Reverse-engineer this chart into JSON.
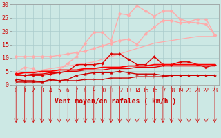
{
  "background_color": "#cce8e4",
  "grid_color": "#aacccc",
  "x_labels": [
    "0",
    "1",
    "2",
    "3",
    "4",
    "5",
    "6",
    "7",
    "8",
    "9",
    "10",
    "11",
    "12",
    "13",
    "14",
    "15",
    "16",
    "17",
    "18",
    "19",
    "20",
    "21",
    "22",
    "23"
  ],
  "xlabel": "Vent moyen/en rafales ( km/h )",
  "ylim": [
    0,
    30
  ],
  "yticks": [
    0,
    5,
    10,
    15,
    20,
    25,
    30
  ],
  "series": [
    {
      "color": "#ffaaaa",
      "linewidth": 0.9,
      "marker": null,
      "markersize": 0,
      "values": [
        4.0,
        4.5,
        5.0,
        5.5,
        6.0,
        6.5,
        7.0,
        7.5,
        8.0,
        8.5,
        9.5,
        10.5,
        11.5,
        12.5,
        13.5,
        14.5,
        15.5,
        16.0,
        16.5,
        17.0,
        17.5,
        18.0,
        18.0,
        18.0
      ]
    },
    {
      "color": "#ffaaaa",
      "linewidth": 1.0,
      "marker": "D",
      "markersize": 2.5,
      "values": [
        10.5,
        10.5,
        10.5,
        10.5,
        10.5,
        11.0,
        11.5,
        12.0,
        12.5,
        13.5,
        14.5,
        15.5,
        16.5,
        17.0,
        15.0,
        19.0,
        21.5,
        24.0,
        24.0,
        23.0,
        23.5,
        24.5,
        24.5,
        18.5
      ]
    },
    {
      "color": "#ffaaaa",
      "linewidth": 1.0,
      "marker": "D",
      "markersize": 2.5,
      "values": [
        4.5,
        6.5,
        6.0,
        4.0,
        4.0,
        5.5,
        8.0,
        10.5,
        15.5,
        19.5,
        19.5,
        16.5,
        26.5,
        26.0,
        29.5,
        27.5,
        25.5,
        27.5,
        27.5,
        24.5,
        23.5,
        23.0,
        22.5,
        18.5
      ]
    },
    {
      "color": "#dd0000",
      "linewidth": 1.0,
      "marker": "D",
      "markersize": 2.0,
      "values": [
        4.0,
        3.5,
        3.5,
        3.5,
        4.0,
        4.5,
        5.0,
        7.5,
        7.5,
        7.5,
        8.0,
        11.5,
        11.5,
        9.5,
        7.5,
        7.5,
        10.5,
        7.5,
        7.5,
        8.5,
        8.5,
        7.5,
        6.5,
        7.5
      ]
    },
    {
      "color": "#cc0000",
      "linewidth": 1.0,
      "marker": "^",
      "markersize": 2.5,
      "values": [
        2.0,
        1.5,
        1.5,
        1.0,
        2.0,
        1.5,
        2.0,
        3.5,
        4.0,
        4.5,
        4.5,
        4.5,
        5.0,
        4.5,
        4.0,
        4.0,
        4.0,
        3.5,
        3.5,
        3.5,
        3.5,
        3.5,
        3.5,
        3.5
      ]
    },
    {
      "color": "#ff0000",
      "linewidth": 1.3,
      "marker": null,
      "markersize": 0,
      "values": [
        4.0,
        4.5,
        4.5,
        5.0,
        5.0,
        5.5,
        5.5,
        5.5,
        6.0,
        6.0,
        6.5,
        6.5,
        6.5,
        7.0,
        7.0,
        7.0,
        7.5,
        7.5,
        7.5,
        7.5,
        7.5,
        7.5,
        7.5,
        7.5
      ]
    },
    {
      "color": "#dd0000",
      "linewidth": 1.0,
      "marker": null,
      "markersize": 0,
      "values": [
        3.5,
        3.5,
        4.0,
        4.0,
        4.5,
        4.5,
        5.0,
        5.0,
        5.5,
        5.5,
        5.5,
        6.0,
        6.0,
        6.0,
        6.5,
        6.5,
        6.5,
        7.0,
        7.0,
        7.0,
        7.0,
        7.0,
        7.0,
        7.0
      ]
    },
    {
      "color": "#cc0000",
      "linewidth": 1.0,
      "marker": "4",
      "markersize": 3.5,
      "values": [
        1.0,
        1.0,
        1.0,
        1.0,
        1.5,
        1.5,
        1.5,
        1.5,
        2.0,
        2.0,
        2.0,
        2.5,
        2.5,
        2.5,
        3.0,
        3.0,
        3.0,
        3.0,
        3.5,
        3.5,
        3.5,
        3.5,
        3.5,
        3.5
      ]
    }
  ],
  "tick_arrow_color": "#cc0000",
  "tick_fontsize": 5.5,
  "xlabel_fontsize": 7,
  "ylabel_fontsize": 6
}
